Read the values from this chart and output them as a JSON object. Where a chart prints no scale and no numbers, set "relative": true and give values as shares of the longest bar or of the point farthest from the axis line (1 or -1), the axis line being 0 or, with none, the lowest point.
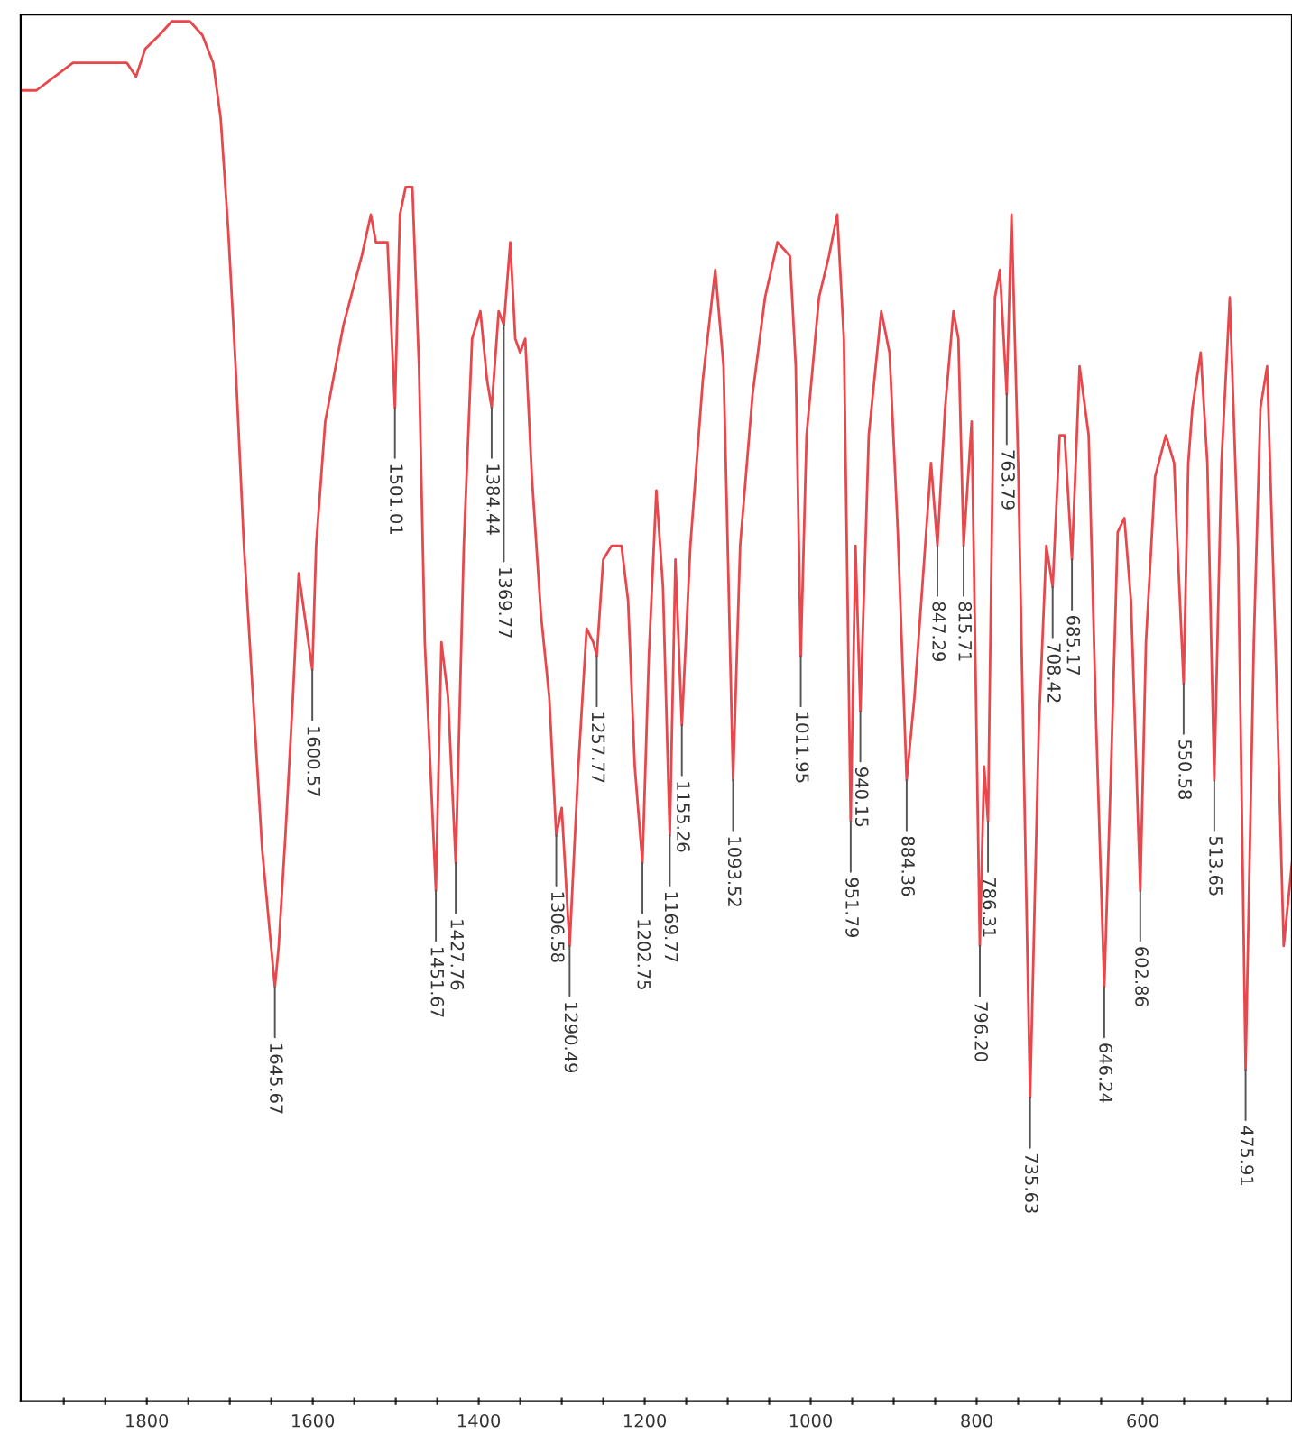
{
  "chart_data": {
    "type": "line",
    "relative": true,
    "tick_labels": "x",
    "grid": false,
    "legend": false,
    "marker": "none",
    "line_style": "solid",
    "xlim": [
      1952,
      420
    ],
    "xticks": [
      {
        "value": 1900,
        "label": null
      },
      {
        "value": 1850,
        "label": null
      },
      1800,
      {
        "value": 1750,
        "label": null
      },
      {
        "value": 1700,
        "label": null
      },
      {
        "value": 1650,
        "label": null
      },
      1600,
      {
        "value": 1550,
        "label": null
      },
      {
        "value": 1500,
        "label": null
      },
      {
        "value": 1450,
        "label": null
      },
      1400,
      {
        "value": 1350,
        "label": null
      },
      {
        "value": 1300,
        "label": null
      },
      {
        "value": 1250,
        "label": null
      },
      1200,
      {
        "value": 1150,
        "label": null
      },
      {
        "value": 1100,
        "label": null
      },
      {
        "value": 1050,
        "label": null
      },
      1000,
      {
        "value": 950,
        "label": null
      },
      {
        "value": 900,
        "label": null
      },
      {
        "value": 850,
        "label": null
      },
      800,
      {
        "value": 750,
        "label": null
      },
      {
        "value": 700,
        "label": null
      },
      {
        "value": 650,
        "label": null
      },
      600,
      {
        "value": 550,
        "label": null
      },
      {
        "value": 500,
        "label": null
      },
      {
        "value": 450,
        "label": null
      }
    ],
    "series": [
      {
        "color": "#e8474c",
        "x": [
          1952,
          1933,
          1911,
          1889,
          1867,
          1846,
          1824,
          1813,
          1802,
          1785,
          1770,
          1748,
          1733,
          1720,
          1711,
          1702,
          1693,
          1683,
          1672,
          1661,
          1645.67,
          1641,
          1633,
          1624,
          1617,
          1600.57,
          1596,
          1585,
          1563,
          1541,
          1530,
          1524,
          1510,
          1501.01,
          1495,
          1488,
          1480,
          1472,
          1465,
          1451.67,
          1445,
          1437,
          1427.76,
          1418,
          1408,
          1398,
          1390,
          1384.44,
          1376,
          1369.77,
          1362,
          1356,
          1350,
          1344,
          1336,
          1325,
          1315,
          1306.58,
          1300,
          1290.49,
          1280,
          1270,
          1262,
          1257.77,
          1250,
          1240,
          1228,
          1220,
          1212,
          1202.75,
          1195,
          1186,
          1178,
          1169.77,
          1163,
          1155.26,
          1145,
          1130,
          1115,
          1105,
          1093.52,
          1085,
          1070,
          1055,
          1040,
          1025,
          1018,
          1011.95,
          1005,
          990,
          978,
          968,
          960,
          951.79,
          946,
          940.15,
          930,
          915,
          905,
          895,
          884.36,
          875,
          862,
          855,
          847.29,
          838,
          828,
          822,
          815.71,
          806,
          796.2,
          791,
          786.31,
          778,
          772,
          763.79,
          758,
          750,
          735.63,
          725,
          716,
          708.42,
          700,
          694,
          685.17,
          676,
          665,
          656,
          646.24,
          638,
          630,
          622,
          614,
          602.86,
          596,
          585,
          572,
          562,
          558,
          550.58,
          545,
          540,
          530,
          522,
          513.65,
          505,
          495,
          485,
          475.91,
          466,
          458,
          450,
          440,
          430,
          420
        ],
        "values": [
          0.95,
          0.95,
          0.96,
          0.97,
          0.97,
          0.97,
          0.97,
          0.96,
          0.98,
          0.99,
          1.0,
          1.0,
          0.99,
          0.97,
          0.93,
          0.85,
          0.75,
          0.62,
          0.51,
          0.4,
          0.3,
          0.33,
          0.41,
          0.51,
          0.6,
          0.53,
          0.62,
          0.71,
          0.78,
          0.83,
          0.86,
          0.84,
          0.84,
          0.72,
          0.86,
          0.88,
          0.88,
          0.75,
          0.55,
          0.37,
          0.55,
          0.51,
          0.39,
          0.62,
          0.77,
          0.79,
          0.74,
          0.72,
          0.79,
          0.78,
          0.84,
          0.77,
          0.76,
          0.77,
          0.67,
          0.57,
          0.51,
          0.41,
          0.43,
          0.33,
          0.46,
          0.56,
          0.55,
          0.54,
          0.61,
          0.62,
          0.62,
          0.58,
          0.46,
          0.39,
          0.54,
          0.66,
          0.59,
          0.41,
          0.61,
          0.49,
          0.62,
          0.74,
          0.82,
          0.75,
          0.45,
          0.62,
          0.73,
          0.8,
          0.84,
          0.83,
          0.75,
          0.54,
          0.7,
          0.8,
          0.83,
          0.86,
          0.77,
          0.42,
          0.62,
          0.5,
          0.7,
          0.79,
          0.76,
          0.63,
          0.45,
          0.51,
          0.62,
          0.68,
          0.62,
          0.72,
          0.79,
          0.77,
          0.62,
          0.71,
          0.33,
          0.46,
          0.42,
          0.8,
          0.82,
          0.73,
          0.86,
          0.68,
          0.22,
          0.49,
          0.62,
          0.59,
          0.7,
          0.7,
          0.61,
          0.75,
          0.7,
          0.49,
          0.3,
          0.46,
          0.63,
          0.64,
          0.58,
          0.37,
          0.55,
          0.67,
          0.7,
          0.68,
          0.62,
          0.52,
          0.68,
          0.72,
          0.76,
          0.68,
          0.45,
          0.68,
          0.8,
          0.62,
          0.24,
          0.55,
          0.72,
          0.75,
          0.55,
          0.33,
          0.39
        ]
      }
    ],
    "annotations": [
      {
        "text": "1645.67",
        "x": 1645.67,
        "y": 0.3
      },
      {
        "text": "1600.57",
        "x": 1600.57,
        "y": 0.53
      },
      {
        "text": "1501.01",
        "x": 1501.01,
        "y": 0.72
      },
      {
        "text": "1451.67",
        "x": 1451.67,
        "y": 0.37
      },
      {
        "text": "1427.76",
        "x": 1427.76,
        "y": 0.39
      },
      {
        "text": "1384.44",
        "x": 1384.44,
        "y": 0.72
      },
      {
        "text": "1369.77",
        "x": 1369.77,
        "y": 0.78
      },
      {
        "text": "1306.58",
        "x": 1306.58,
        "y": 0.41
      },
      {
        "text": "1290.49",
        "x": 1290.49,
        "y": 0.33
      },
      {
        "text": "1257.77",
        "x": 1257.77,
        "y": 0.54
      },
      {
        "text": "1202.75",
        "x": 1202.75,
        "y": 0.39
      },
      {
        "text": "1169.77",
        "x": 1169.77,
        "y": 0.41
      },
      {
        "text": "1155.26",
        "x": 1155.26,
        "y": 0.49
      },
      {
        "text": "1093.52",
        "x": 1093.52,
        "y": 0.45
      },
      {
        "text": "1011.95",
        "x": 1011.95,
        "y": 0.54
      },
      {
        "text": "951.79",
        "x": 951.79,
        "y": 0.42
      },
      {
        "text": "940.15",
        "x": 940.15,
        "y": 0.5
      },
      {
        "text": "884.36",
        "x": 884.36,
        "y": 0.45
      },
      {
        "text": "847.29",
        "x": 847.29,
        "y": 0.62
      },
      {
        "text": "815.71",
        "x": 815.71,
        "y": 0.62
      },
      {
        "text": "796.20",
        "x": 796.2,
        "y": 0.33
      },
      {
        "text": "786.31",
        "x": 786.31,
        "y": 0.42
      },
      {
        "text": "763.79",
        "x": 763.79,
        "y": 0.73
      },
      {
        "text": "735.63",
        "x": 735.63,
        "y": 0.22
      },
      {
        "text": "708.42",
        "x": 708.42,
        "y": 0.59
      },
      {
        "text": "685.17",
        "x": 685.17,
        "y": 0.61
      },
      {
        "text": "646.24",
        "x": 646.24,
        "y": 0.3
      },
      {
        "text": "602.86",
        "x": 602.86,
        "y": 0.37
      },
      {
        "text": "550.58",
        "x": 550.58,
        "y": 0.52
      },
      {
        "text": "513.65",
        "x": 513.65,
        "y": 0.45
      },
      {
        "text": "475.91",
        "x": 475.91,
        "y": 0.24
      }
    ]
  }
}
